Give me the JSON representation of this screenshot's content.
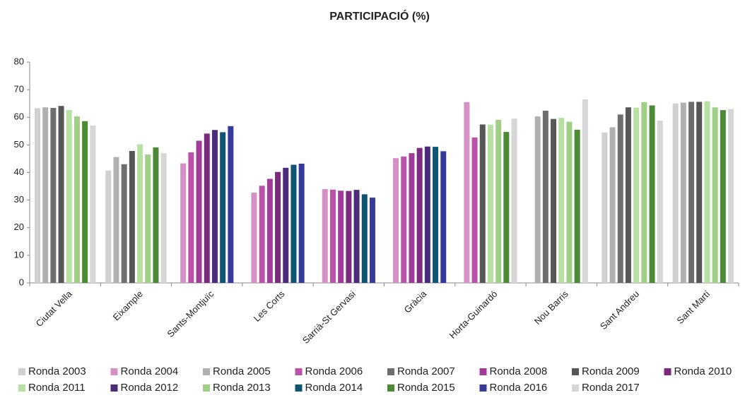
{
  "chart_data": {
    "type": "bar",
    "title": "PARTICIPACIÓ (%)",
    "categories": [
      "Ciutat Vella",
      "Eixample",
      "Sants-Montjuïc",
      "Les Corts",
      "Sarrià-St Gervasi",
      "Gràcia",
      "Horta-Guinardó",
      "Nou Barris",
      "Sant Andreu",
      "Sant Martí"
    ],
    "ylim": [
      0,
      80
    ],
    "yticks": [
      0,
      10,
      20,
      30,
      40,
      50,
      60,
      70,
      80
    ],
    "series": [
      {
        "name": "Ronda 2003",
        "color": "#d0d0d0",
        "values": [
          63.3,
          40.7,
          null,
          null,
          null,
          null,
          null,
          null,
          54.5,
          65.0
        ]
      },
      {
        "name": "Ronda 2004",
        "color": "#d591c5",
        "values": [
          null,
          null,
          43.3,
          32.7,
          34.0,
          45.2,
          65.5,
          null,
          null,
          null
        ]
      },
      {
        "name": "Ronda 2005",
        "color": "#b0b0b0",
        "values": [
          63.6,
          45.6,
          null,
          null,
          null,
          null,
          null,
          60.3,
          56.4,
          65.3
        ]
      },
      {
        "name": "Ronda 2006",
        "color": "#bb52aa",
        "values": [
          null,
          null,
          47.3,
          35.2,
          33.8,
          45.8,
          52.7,
          null,
          null,
          null
        ]
      },
      {
        "name": "Ronda 2007",
        "color": "#6e6e6e",
        "values": [
          63.4,
          43.0,
          null,
          null,
          null,
          null,
          null,
          62.4,
          61.0,
          65.6
        ]
      },
      {
        "name": "Ronda 2008",
        "color": "#a03c98",
        "values": [
          null,
          null,
          51.5,
          37.7,
          33.4,
          47.0,
          null,
          null,
          null,
          null
        ]
      },
      {
        "name": "Ronda 2009",
        "color": "#575757",
        "values": [
          64.1,
          47.8,
          null,
          null,
          null,
          null,
          57.4,
          59.4,
          63.6,
          65.6
        ]
      },
      {
        "name": "Ronda 2010",
        "color": "#7c2a80",
        "values": [
          null,
          null,
          54.1,
          40.2,
          33.3,
          48.9,
          null,
          null,
          null,
          null
        ]
      },
      {
        "name": "Ronda 2011",
        "color": "#b8e0a2",
        "values": [
          62.6,
          50.2,
          null,
          null,
          null,
          null,
          57.3,
          59.8,
          63.5,
          65.8
        ]
      },
      {
        "name": "Ronda 2012",
        "color": "#4b2b7c",
        "values": [
          null,
          null,
          55.4,
          41.7,
          33.7,
          49.4,
          null,
          null,
          null,
          null
        ]
      },
      {
        "name": "Ronda 2013",
        "color": "#a0d086",
        "values": [
          60.3,
          46.5,
          null,
          null,
          null,
          null,
          59.1,
          58.4,
          65.5,
          63.6
        ]
      },
      {
        "name": "Ronda 2014",
        "color": "#0e5574",
        "values": [
          null,
          null,
          54.6,
          42.8,
          32.1,
          49.3,
          null,
          null,
          null,
          null
        ]
      },
      {
        "name": "Ronda 2015",
        "color": "#4b8b36",
        "values": [
          58.6,
          49.1,
          null,
          null,
          null,
          null,
          54.7,
          55.5,
          64.3,
          62.6
        ]
      },
      {
        "name": "Ronda 2016",
        "color": "#363a9a",
        "values": [
          null,
          null,
          56.8,
          43.2,
          30.9,
          47.7,
          null,
          null,
          null,
          null
        ]
      },
      {
        "name": "Ronda 2017",
        "color": "#d6d6d6",
        "values": [
          57.0,
          47.0,
          null,
          null,
          null,
          null,
          59.5,
          66.5,
          58.8,
          63.0
        ]
      }
    ]
  }
}
